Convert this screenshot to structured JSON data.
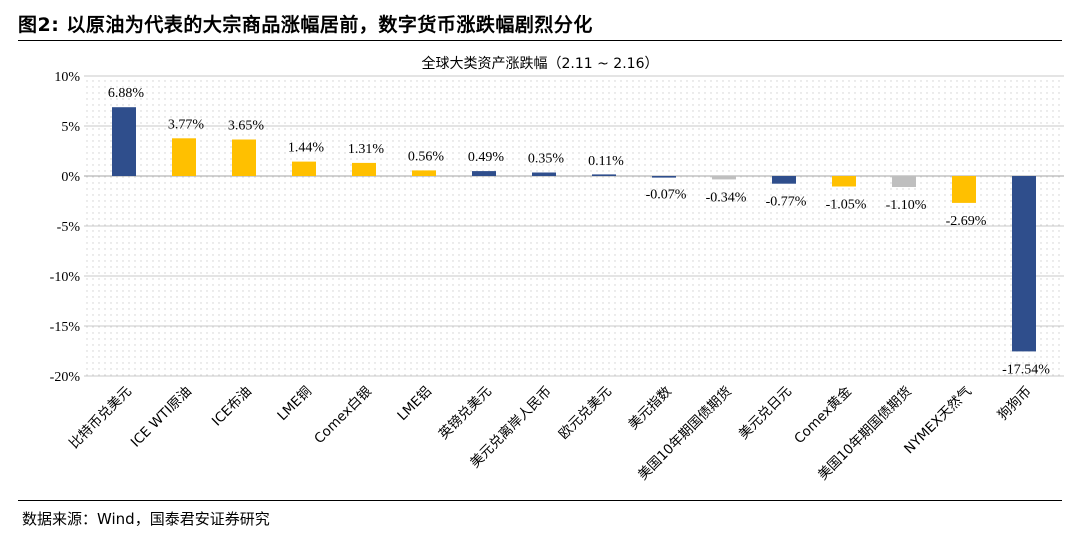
{
  "figure": {
    "title": "图2:   以原油为代表的大宗商品涨幅居前，数字货币涨跌幅剧烈分化",
    "source": "数据来源：Wind，国泰君安证券研究"
  },
  "chart_data": {
    "type": "bar",
    "title": "全球大类资产涨跌幅（2.11 ~ 2.16）",
    "xlabel": "",
    "ylabel": "",
    "ylim": [
      -20,
      10
    ],
    "yticks": [
      10,
      5,
      0,
      -5,
      -10,
      -15,
      -20
    ],
    "ytick_labels": [
      "10%",
      "5%",
      "0%",
      "-5%",
      "-10%",
      "-15%",
      "-20%"
    ],
    "grid": "dotted",
    "legend": "none",
    "categories": [
      "比特币兑美元",
      "ICE WTI原油",
      "ICE布油",
      "LME铜",
      "Comex白银",
      "LME铝",
      "英镑兑美元",
      "美元兑离岸人民币",
      "欧元兑美元",
      "美元指数",
      "美国10年期国债期货",
      "美元兑日元",
      "Comex黄金",
      "美国10年期国债期货",
      "NYMEX天然气",
      "狗狗币"
    ],
    "values": [
      6.88,
      3.77,
      3.65,
      1.44,
      1.31,
      0.56,
      0.49,
      0.35,
      0.11,
      -0.07,
      -0.34,
      -0.77,
      -1.05,
      -1.1,
      -2.69,
      -17.54
    ],
    "data_labels": [
      "6.88%",
      "3.77%",
      "3.65%",
      "1.44%",
      "1.31%",
      "0.56%",
      "0.49%",
      "0.35%",
      "0.11%",
      "-0.07%",
      "-0.34%",
      "-0.77%",
      "-1.05%",
      "-1.10%",
      "-2.69%",
      "-17.54%"
    ],
    "bar_colors": [
      "#2F4E8C",
      "#FFC000",
      "#FFC000",
      "#FFC000",
      "#FFC000",
      "#FFC000",
      "#2F4E8C",
      "#2F4E8C",
      "#2F4E8C",
      "#2F4E8C",
      "#BFBFBF",
      "#2F4E8C",
      "#FFC000",
      "#BFBFBF",
      "#FFC000",
      "#2F4E8C"
    ]
  },
  "colors": {
    "blue": "#2F4E8C",
    "gold": "#FFC000",
    "gray": "#BFBFBF",
    "grid": "#C8C8C8"
  }
}
